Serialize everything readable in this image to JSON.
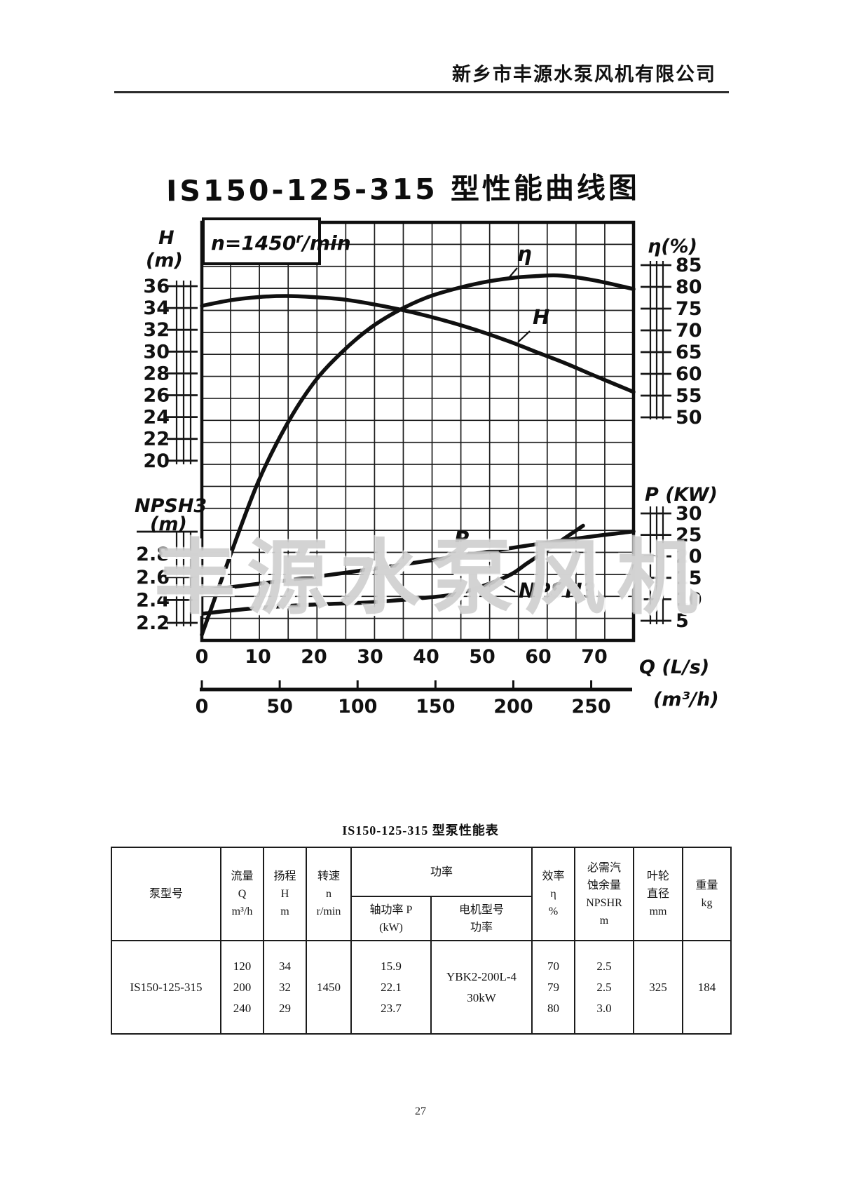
{
  "page": {
    "company": "新乡市丰源水泵风机有限公司",
    "page_number": "27",
    "watermark": "丰源水泵风机"
  },
  "chart": {
    "title": "IS150-125-315 型性能曲线图",
    "speed_note": {
      "prefix": "n=1450",
      "sup": "r",
      "suffix": "/min"
    },
    "axes": {
      "h": {
        "label": "H",
        "unit": "(m)",
        "ticks": [
          36,
          34,
          32,
          30,
          28,
          26,
          24,
          22,
          20
        ]
      },
      "npsh": {
        "label": "NPSH3",
        "unit": "(m)",
        "ticks": [
          2.8,
          2.6,
          2.4,
          2.2
        ]
      },
      "eta": {
        "label": "η(%)",
        "ticks": [
          85,
          80,
          75,
          70,
          65,
          60,
          55,
          50
        ]
      },
      "p": {
        "label": "P (KW)",
        "ticks": [
          30,
          25,
          20,
          15,
          10,
          5
        ]
      },
      "q_ls": {
        "label": "Q (L/s)",
        "ticks": [
          0,
          10,
          20,
          30,
          40,
          50,
          60,
          70
        ]
      },
      "q_m3h": {
        "label": "(m³/h)",
        "ticks": [
          0,
          50,
          100,
          150,
          200,
          250
        ]
      }
    },
    "curve_labels": {
      "eta": "η",
      "h": "H",
      "p": "P",
      "npsh": "NPSH3"
    }
  },
  "chart_data": {
    "type": "line",
    "title": "IS150-125-315 型性能曲线图",
    "subtitle": "n=1450 r/min",
    "x_axis": {
      "label": "Q (L/s)",
      "range": [
        0,
        77
      ]
    },
    "secondary_x_axis": {
      "label": "(m³/h)",
      "range": [
        0,
        277
      ],
      "ticks": [
        0,
        50,
        100,
        150,
        200,
        250
      ]
    },
    "grid": true,
    "series": [
      {
        "name": "H",
        "unit": "m",
        "axis_range": [
          20,
          36
        ],
        "points": [
          [
            0,
            34.2
          ],
          [
            5,
            34.7
          ],
          [
            10,
            35.0
          ],
          [
            15,
            35.1
          ],
          [
            20,
            35.0
          ],
          [
            25,
            34.8
          ],
          [
            30,
            34.4
          ],
          [
            35,
            33.9
          ],
          [
            40,
            33.3
          ],
          [
            45,
            32.6
          ],
          [
            50,
            31.8
          ],
          [
            55,
            30.9
          ],
          [
            60,
            29.9
          ],
          [
            65,
            28.9
          ],
          [
            70,
            27.8
          ],
          [
            77,
            26.3
          ]
        ]
      },
      {
        "name": "η",
        "unit": "%",
        "axis_range": [
          50,
          85
        ],
        "points": [
          [
            0,
            0
          ],
          [
            5,
            18
          ],
          [
            10,
            35
          ],
          [
            15,
            48
          ],
          [
            20,
            58
          ],
          [
            25,
            65
          ],
          [
            30,
            70.5
          ],
          [
            35,
            74.5
          ],
          [
            40,
            77.5
          ],
          [
            45,
            79.5
          ],
          [
            50,
            81
          ],
          [
            55,
            82
          ],
          [
            60,
            82.5
          ],
          [
            64,
            82.6
          ],
          [
            70,
            81.5
          ],
          [
            77,
            79.5
          ]
        ]
      },
      {
        "name": "P",
        "unit": "kW",
        "axis_range": [
          5,
          30
        ],
        "points": [
          [
            0,
            12
          ],
          [
            10,
            13.6
          ],
          [
            20,
            15.2
          ],
          [
            30,
            17
          ],
          [
            40,
            18.9
          ],
          [
            50,
            20.9
          ],
          [
            60,
            22.9
          ],
          [
            70,
            24.7
          ],
          [
            77,
            25.8
          ]
        ]
      },
      {
        "name": "NPSH3",
        "unit": "m",
        "axis_range": [
          2.2,
          3.0
        ],
        "points": [
          [
            0,
            2.28
          ],
          [
            10,
            2.33
          ],
          [
            20,
            2.36
          ],
          [
            30,
            2.38
          ],
          [
            40,
            2.42
          ],
          [
            45,
            2.45
          ],
          [
            50,
            2.52
          ],
          [
            55,
            2.62
          ],
          [
            58,
            2.72
          ],
          [
            62,
            2.85
          ],
          [
            65,
            2.95
          ],
          [
            68,
            3.05
          ]
        ]
      }
    ]
  },
  "table": {
    "title": "IS150-125-315 型泵性能表",
    "headers": {
      "model": "泵型号",
      "flow": "流量\nQ\nm³/h",
      "head": "扬程\nH\nm",
      "speed": "转速\nn\nr/min",
      "power_group": "功率",
      "shaft_power": "轴功率 P\n(kW)",
      "motor": "电机型号\n功率",
      "efficiency": "效率\nη\n%",
      "npshr": "必需汽\n蚀余量\nNPSHR\nm",
      "impeller": "叶轮\n直径\nmm",
      "weight": "重量\nkg"
    },
    "row": {
      "model": "IS150-125-315",
      "flow": "120\n200\n240",
      "head": "34\n32\n29",
      "speed": "1450",
      "shaft_power": "15.9\n22.1\n23.7",
      "motor": "YBK2-200L-4\n30kW",
      "efficiency": "70\n79\n80",
      "npshr": "2.5\n2.5\n3.0",
      "impeller": "325",
      "weight": "184"
    }
  }
}
